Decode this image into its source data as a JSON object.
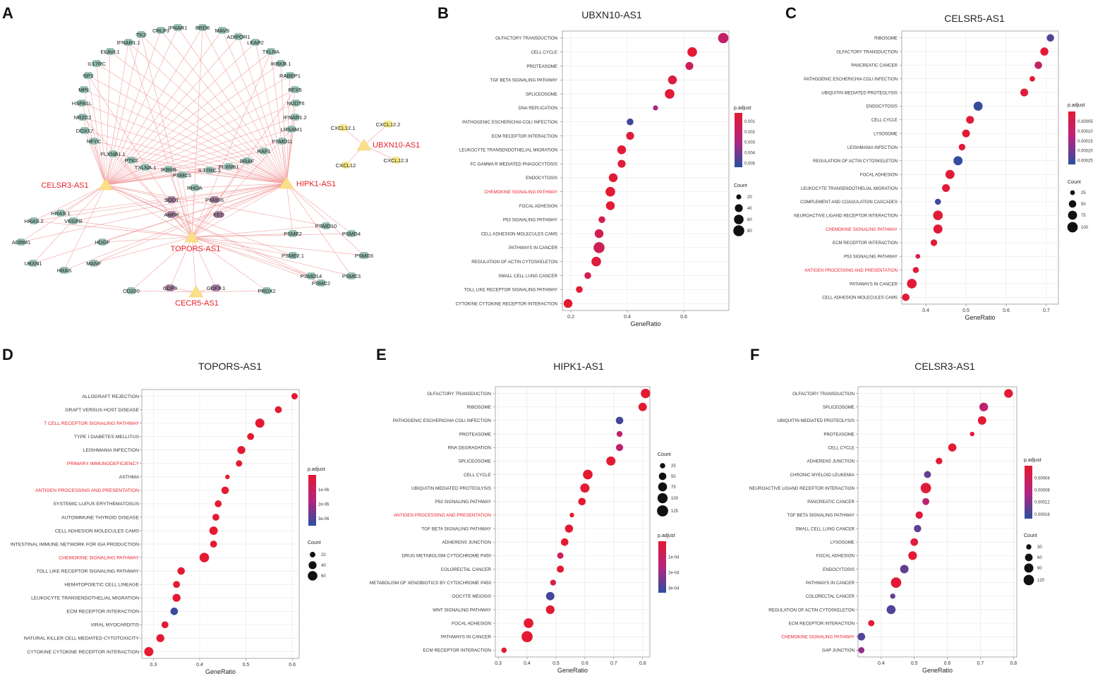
{
  "figure": {
    "panel_letters": [
      "A",
      "B",
      "C",
      "D",
      "E",
      "F"
    ],
    "common": {
      "xlabel": "GeneRatio",
      "padj_label": "p.adjust",
      "count_label": "Count"
    }
  },
  "network": {
    "hubs": [
      "CELSR3-AS1",
      "HIPK1-AS1",
      "TOPORS-AS1",
      "CECR5-AS1",
      "UBXN10-AS1"
    ],
    "nodes": [
      "TK2",
      "CRLF3",
      "IFNAR1",
      "BRD8",
      "MAVS",
      "ADIPOR1",
      "IFNAR1.1",
      "LEAP2",
      "ELAVL1",
      "TXLNA",
      "IL17RC",
      "IKBKB.1",
      "SP1",
      "RABEP1",
      "MPL",
      "RFX5",
      "HSPA1L",
      "NUDT6",
      "NR2C2",
      "IFNAR1.2",
      "DDX17",
      "LRSAM1",
      "NFYC",
      "PSMD11",
      "PLXNB1.1",
      "RAF1",
      "PTK2",
      "BRAF",
      "TXLNA.1",
      "PLXNB1",
      "IKBKB",
      "IL17RC.1",
      "PSMC5",
      "RHOA",
      "SOD1",
      "PSMD6",
      "AMFR",
      "EED",
      "HRAS.1",
      "PSME2",
      "PSMD10",
      "PSMD4",
      "HRAS.2",
      "VEGFB",
      "PSME2.1",
      "PSMC6",
      "ADRM1",
      "HDGF",
      "PSMD14",
      "PSMC3",
      "UBXN1",
      "MANF",
      "PSMC2",
      "HRAS",
      "GDF9",
      "GDF9.1",
      "CD320",
      "PRDX2",
      "CXCL12.1",
      "CXCL12.2",
      "CXCL12",
      "CXCL12.3"
    ]
  },
  "chart_data": [
    {
      "panel": "B",
      "type": "scatter",
      "title": "UBXN10-AS1",
      "xlabel": "GeneRatio",
      "xlim": [
        0.17,
        0.76
      ],
      "xticks": [
        "0.2",
        "0.4",
        "0.6"
      ],
      "xtick_values": [
        0.2,
        0.4,
        0.6
      ],
      "terms": [
        "OLFACTORY TRANSDUCTION",
        "CELL CYCLE",
        "PROTEASOME",
        "TGF BETA SIGNALING PATHWAY",
        "SPLICEOSOME",
        "DNA REPLICATION",
        "PATHOGENIC ESCHERICHIA COLI INFECTION",
        "ECM RECEPTOR INTERACTION",
        "LEUKOCYTE TRANSENDOTHELIAL MIGRATION",
        "FC GAMMA R MEDIATED PHAGOCYTOSIS",
        "ENDOCYTOSIS",
        "CHEMOKINE SIGNALING PATHWAY",
        "FOCAL ADHESION",
        "P53 SIGNALING PATHWAY",
        "CELL ADHESION MOLECULES CAMS",
        "PATHWAYS IN CANCER",
        "REGULATION OF ACTIN CYTOSKELETON",
        "SMALL CELL LUNG CANCER",
        "TOLL LIKE RECEPTOR SIGNALING PATHWAY",
        "CYTOKINE CYTOKINE RECEPTOR INTERACTION"
      ],
      "highlight": [
        "CHEMOKINE SIGNALING PATHWAY"
      ],
      "gene_ratio": [
        0.74,
        0.63,
        0.62,
        0.56,
        0.55,
        0.5,
        0.41,
        0.41,
        0.38,
        0.38,
        0.35,
        0.34,
        0.34,
        0.31,
        0.3,
        0.3,
        0.29,
        0.26,
        0.23,
        0.19
      ],
      "count": [
        70,
        60,
        40,
        50,
        60,
        20,
        30,
        40,
        50,
        40,
        50,
        60,
        50,
        30,
        50,
        80,
        60,
        30,
        30,
        50
      ],
      "p_adjust": [
        0.002,
        0.0003,
        0.0015,
        0.0008,
        0.0003,
        0.003,
        0.005,
        0.0003,
        0.0004,
        0.0005,
        0.0004,
        0.0003,
        0.0003,
        0.0012,
        0.0012,
        0.0014,
        0.0005,
        0.0012,
        0.0003,
        0.0002
      ],
      "colorbar": {
        "ticks": [
          "0.001",
          "0.002",
          "0.003",
          "0.004",
          "0.005"
        ],
        "tick_values": [
          0.001,
          0.002,
          0.003,
          0.004,
          0.005
        ],
        "range": [
          0.0002,
          0.0054
        ]
      },
      "size_legend": {
        "labels": [
          "20",
          "40",
          "60",
          "80"
        ],
        "values": [
          20,
          40,
          60,
          80
        ],
        "range": [
          15,
          85
        ]
      }
    },
    {
      "panel": "C",
      "type": "scatter",
      "title": "CELSR5-AS1",
      "xlabel": "GeneRatio",
      "xlim": [
        0.34,
        0.73
      ],
      "xticks": [
        "0.4",
        "0.5",
        "0.6",
        "0.7"
      ],
      "xtick_values": [
        0.4,
        0.5,
        0.6,
        0.7
      ],
      "terms": [
        "RIBOSOME",
        "OLFACTORY TRANSDUCTION",
        "PANCREATIC CANCER",
        "PATHOGENIC ESCHERICHIA COLI INFECTION",
        "UBIQUITIN MEDIATED PROTEOLYSIS",
        "ENDOCYTOSIS",
        "CELL CYCLE",
        "LYSOSOME",
        "LEISHMANIA INFECTION",
        "REGULATION OF ACTIN CYTOSKELETON",
        "FOCAL ADHESION",
        "LEUKOCYTE TRANSENDOTHELIAL MIGRATION",
        "COMPLEMENT AND COAGULATION CASCADES",
        "NEUROACTIVE LIGAND RECEPTOR INTERACTION",
        "CHEMOKINE SIGNALING PATHWAY",
        "ECM RECEPTOR INTERACTION",
        "P53 SIGNALING PATHWAY",
        "ANTIGEN PROCESSING AND PRESENTATION",
        "PATHWAYS IN CANCER",
        "CELL ADHESION MOLECULES CAMS"
      ],
      "highlight": [
        "CHEMOKINE SIGNALING PATHWAY",
        "ANTIGEN PROCESSING AND PRESENTATION"
      ],
      "gene_ratio": [
        0.71,
        0.695,
        0.68,
        0.665,
        0.645,
        0.53,
        0.51,
        0.5,
        0.49,
        0.48,
        0.46,
        0.45,
        0.43,
        0.43,
        0.43,
        0.42,
        0.38,
        0.375,
        0.365,
        0.35
      ],
      "count": [
        50,
        60,
        50,
        30,
        55,
        75,
        55,
        55,
        40,
        75,
        75,
        55,
        35,
        85,
        75,
        40,
        25,
        35,
        85,
        50
      ],
      "p_adjust": [
        0.00023,
        1e-05,
        9e-05,
        1e-05,
        1e-05,
        0.00026,
        1e-05,
        1e-05,
        1e-05,
        0.00026,
        1e-05,
        1e-05,
        0.00025,
        1e-05,
        1e-05,
        1e-05,
        3e-05,
        1e-05,
        1e-05,
        1e-05
      ],
      "colorbar": {
        "ticks": [
          "0.00005",
          "0.00010",
          "0.00015",
          "0.00020",
          "0.00025"
        ],
        "tick_values": [
          5e-05,
          0.0001,
          0.00015,
          0.0002,
          0.00025
        ],
        "range": [
          5e-07,
          0.00027
        ]
      },
      "size_legend": {
        "labels": [
          "25",
          "50",
          "75",
          "100"
        ],
        "values": [
          25,
          50,
          75,
          100
        ],
        "range": [
          20,
          105
        ]
      }
    },
    {
      "panel": "D",
      "type": "scatter",
      "title": "TOPORS-AS1",
      "xlabel": "GeneRatio",
      "xlim": [
        0.275,
        0.615
      ],
      "xticks": [
        "0.3",
        "0.4",
        "0.5",
        "0.6"
      ],
      "xtick_values": [
        0.3,
        0.4,
        0.5,
        0.6
      ],
      "terms": [
        "ALLOGRAFT REJECTION",
        "GRAFT VERSUS HOST DISEASE",
        "T CELL RECEPTOR SIGNALING PATHWAY",
        "TYPE I DIABETES MELLITUS",
        "LEISHMANIA INFECTION",
        "PRIMARY IMMUNODEFICIENCY",
        "ASTHMA",
        "ANTIGEN PROCESSING AND PRESENTATION",
        "SYSTEMIC LUPUS ERYTHEMATOSUS",
        "AUTOIMMUNE THYROID DISEASE",
        "CELL ADHESION MOLECULES CAMS",
        "INTESTINAL IMMUNE NETWORK FOR IGA PRODUCTION",
        "CHEMOKINE SIGNALING PATHWAY",
        "TOLL LIKE RECEPTOR SIGNALING PATHWAY",
        "HEMATOPOIETIC CELL LINEAGE",
        "LEUKOCYTE TRANSENDOTHELIAL MIGRATION",
        "ECM RECEPTOR INTERACTION",
        "VIRAL MYOCARDITIS",
        "NATURAL KILLER CELL MEDIATED CYTOTOXICITY",
        "CYTOKINE CYTOKINE RECEPTOR INTERACTION"
      ],
      "highlight": [
        "T CELL RECEPTOR SIGNALING PATHWAY",
        "PRIMARY IMMUNODEFICIENCY",
        "ANTIGEN PROCESSING AND PRESENTATION",
        "CHEMOKINE SIGNALING PATHWAY"
      ],
      "gene_ratio": [
        0.605,
        0.57,
        0.53,
        0.51,
        0.49,
        0.485,
        0.46,
        0.455,
        0.44,
        0.435,
        0.43,
        0.43,
        0.41,
        0.36,
        0.35,
        0.35,
        0.345,
        0.325,
        0.315,
        0.29
      ],
      "count": [
        25,
        30,
        55,
        30,
        40,
        25,
        15,
        35,
        30,
        30,
        45,
        30,
        60,
        35,
        30,
        40,
        35,
        30,
        40,
        55
      ],
      "p_adjust": [
        1e-08,
        1e-08,
        1e-08,
        1e-08,
        1e-08,
        1e-08,
        1e-08,
        1e-08,
        1e-08,
        1e-08,
        1e-08,
        1e-08,
        1e-08,
        1e-08,
        1e-08,
        1e-08,
        3.3e-06,
        1e-08,
        1e-08,
        1e-08
      ],
      "colorbar": {
        "ticks": [
          "1e-06",
          "2e-06",
          "3e-06"
        ],
        "tick_values": [
          1e-06,
          2e-06,
          3e-06
        ],
        "range": [
          0,
          3.5e-06
        ]
      },
      "size_legend": {
        "labels": [
          "20",
          "40",
          "60"
        ],
        "values": [
          20,
          40,
          60
        ],
        "range": [
          12,
          65
        ]
      }
    },
    {
      "panel": "E",
      "type": "scatter",
      "title": "HIPK1-AS1",
      "xlabel": "GeneRatio",
      "xlim": [
        0.29,
        0.825
      ],
      "xticks": [
        "0.3",
        "0.4",
        "0.5",
        "0.6",
        "0.7",
        "0.8"
      ],
      "xtick_values": [
        0.3,
        0.4,
        0.5,
        0.6,
        0.7,
        0.8
      ],
      "terms": [
        "OLFACTORY TRANSDUCTION",
        "RIBOSOME",
        "PATHOGENIC ESCHERICHIA COLI INFECTION",
        "PROTEASOME",
        "RNA DEGRADATION",
        "SPLICEOSOME",
        "CELL CYCLE",
        "UBIQUITIN MEDIATED PROTEOLYSIS",
        "P53 SIGNALING PATHWAY",
        "ANTIGEN PROCESSING AND PRESENTATION",
        "TGF BETA SIGNALING PATHWAY",
        "ADHERENS JUNCTION",
        "DRUG METABOLISM CYTOCHROME P450",
        "COLORECTAL CANCER",
        "METABOLISM OF XENOBIOTICS BY CYTOCHROME P450",
        "OOCYTE MEIOSIS",
        "WNT SIGNALING PATHWAY",
        "FOCAL ADHESION",
        "PATHWAYS IN CANCER",
        "ECM RECEPTOR INTERACTION"
      ],
      "highlight": [
        "ANTIGEN PROCESSING AND PRESENTATION"
      ],
      "gene_ratio": [
        0.81,
        0.8,
        0.72,
        0.72,
        0.72,
        0.69,
        0.61,
        0.6,
        0.59,
        0.555,
        0.545,
        0.53,
        0.515,
        0.515,
        0.49,
        0.48,
        0.48,
        0.405,
        0.4,
        0.32
      ],
      "count": [
        85,
        65,
        50,
        30,
        45,
        80,
        90,
        80,
        50,
        20,
        60,
        50,
        35,
        45,
        30,
        65,
        70,
        90,
        125,
        25
      ],
      "p_adjust": [
        1e-06,
        1e-06,
        0.0003,
        0.00012,
        0.00012,
        1e-06,
        1e-06,
        1e-06,
        1e-06,
        1e-06,
        1e-06,
        1e-06,
        8e-05,
        1e-06,
        5e-05,
        0.0003,
        1e-06,
        1e-06,
        1e-06,
        1e-06
      ],
      "colorbar": {
        "ticks": [
          "1e-04",
          "2e-04",
          "3e-04"
        ],
        "tick_values": [
          0.0001,
          0.0002,
          0.0003
        ],
        "range": [
          0,
          0.00033
        ]
      },
      "size_legend": {
        "labels": [
          "25",
          "50",
          "75",
          "100",
          "125"
        ],
        "values": [
          25,
          50,
          75,
          100,
          125
        ],
        "range": [
          15,
          130
        ]
      }
    },
    {
      "panel": "F",
      "type": "scatter",
      "title": "CELSR3-AS1",
      "xlabel": "GeneRatio",
      "xlim": [
        0.33,
        0.81
      ],
      "xticks": [
        "0.4",
        "0.5",
        "0.6",
        "0.7",
        "0.8"
      ],
      "xtick_values": [
        0.4,
        0.5,
        0.6,
        0.7,
        0.8
      ],
      "terms": [
        "OLFACTORY TRANSDUCTION",
        "SPLICEOSOME",
        "UBIQUITIN MEDIATED PROTEOLYSIS",
        "PROTEASOME",
        "CELL CYCLE",
        "ADHERENS JUNCTION",
        "CHRONIC MYELOID LEUKEMIA",
        "NEUROACTIVE LIGAND RECEPTOR INTERACTION",
        "PANCREATIC CANCER",
        "TGF BETA SIGNALING PATHWAY",
        "SMALL CELL LUNG CANCER",
        "LYSOSOME",
        "FOCAL ADHESION",
        "ENDOCYTOSIS",
        "PATHWAYS IN CANCER",
        "COLORECTAL CANCER",
        "REGULATION OF ACTIN CYTOSKELETON",
        "ECM RECEPTOR INTERACTION",
        "CHEMOKINE SIGNALING PATHWAY",
        "GAP JUNCTION"
      ],
      "highlight": [
        "CHEMOKINE SIGNALING PATHWAY"
      ],
      "gene_ratio": [
        0.785,
        0.71,
        0.705,
        0.675,
        0.615,
        0.575,
        0.54,
        0.535,
        0.535,
        0.515,
        0.51,
        0.5,
        0.495,
        0.47,
        0.445,
        0.435,
        0.43,
        0.37,
        0.34,
        0.34
      ],
      "count": [
        80,
        80,
        75,
        25,
        70,
        45,
        50,
        120,
        50,
        55,
        55,
        60,
        80,
        75,
        120,
        30,
        85,
        40,
        60,
        40
      ],
      "p_adjust": [
        2e-06,
        7e-05,
        2e-06,
        2e-06,
        2e-06,
        2e-06,
        0.00014,
        1e-05,
        7e-05,
        1e-05,
        0.00014,
        1e-05,
        2e-06,
        0.00014,
        2e-06,
        0.00014,
        0.00015,
        2e-06,
        0.00015,
        0.00011
      ],
      "colorbar": {
        "ticks": [
          "0.00004",
          "0.00008",
          "0.00012",
          "0.00016"
        ],
        "tick_values": [
          4e-05,
          8e-05,
          0.00012,
          0.00016
        ],
        "range": [
          0,
          0.000175
        ]
      },
      "size_legend": {
        "labels": [
          "30",
          "60",
          "90",
          "120"
        ],
        "values": [
          30,
          60,
          90,
          120
        ],
        "range": [
          20,
          125
        ]
      }
    }
  ]
}
